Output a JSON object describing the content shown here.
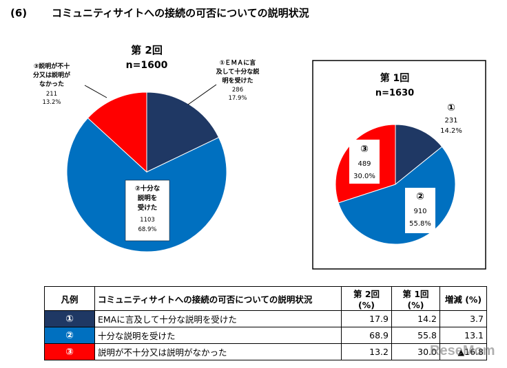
{
  "header": {
    "section": "(6)",
    "title": "コミュニティサイトへの接続の可否についての説明状況"
  },
  "chart_data": [
    {
      "type": "pie",
      "title": "第 2回",
      "subtitle": "n=1600",
      "total": 1600,
      "slices": [
        {
          "id": 1,
          "label_lines": [
            "①ＥＭＡに言",
            "及して十分な説",
            "明を受けた"
          ],
          "count": 286,
          "pct": 17.9,
          "pct_label": "17.9%",
          "color": "#1f3864"
        },
        {
          "id": 2,
          "label_lines": [
            "②十分な",
            "説明を",
            "受けた"
          ],
          "count": 1103,
          "pct": 68.9,
          "pct_label": "68.9%",
          "color": "#0070c0"
        },
        {
          "id": 3,
          "label_lines": [
            "③説明が不十",
            "分又は説明が",
            "なかった"
          ],
          "count": 211,
          "pct": 13.2,
          "pct_label": "13.2%",
          "color": "#ff0000"
        }
      ]
    },
    {
      "type": "pie",
      "title": "第 1回",
      "subtitle": "n=1630",
      "total": 1630,
      "slices": [
        {
          "id": 1,
          "marker": "①",
          "count": 231,
          "pct": 14.2,
          "pct_label": "14.2%",
          "color": "#1f3864"
        },
        {
          "id": 2,
          "marker": "②",
          "count": 910,
          "pct": 55.8,
          "pct_label": "55.8%",
          "color": "#0070c0"
        },
        {
          "id": 3,
          "marker": "③",
          "count": 489,
          "pct": 30.0,
          "pct_label": "30.0%",
          "color": "#ff0000"
        }
      ]
    }
  ],
  "legend_table": {
    "headers": [
      "凡例",
      "コミュニティサイトへの接続の可否についての説明状況",
      "第 2回 (%)",
      "第 1回 (%)",
      "増減 (%)"
    ],
    "rows": [
      {
        "marker": "①",
        "color": "#1f3864",
        "label": "EMAに言及して十分な説明を受けた",
        "round2": "17.9",
        "round1": "14.2",
        "diff": "3.7"
      },
      {
        "marker": "②",
        "color": "#0070c0",
        "label": "十分な説明を受けた",
        "round2": "68.9",
        "round1": "55.8",
        "diff": "13.1"
      },
      {
        "marker": "③",
        "color": "#ff0000",
        "label": "説明が不十分又は説明がなかった",
        "round2": "13.2",
        "round1": "30.0",
        "diff": "▲16.8"
      }
    ]
  },
  "watermark": "ReseMom"
}
